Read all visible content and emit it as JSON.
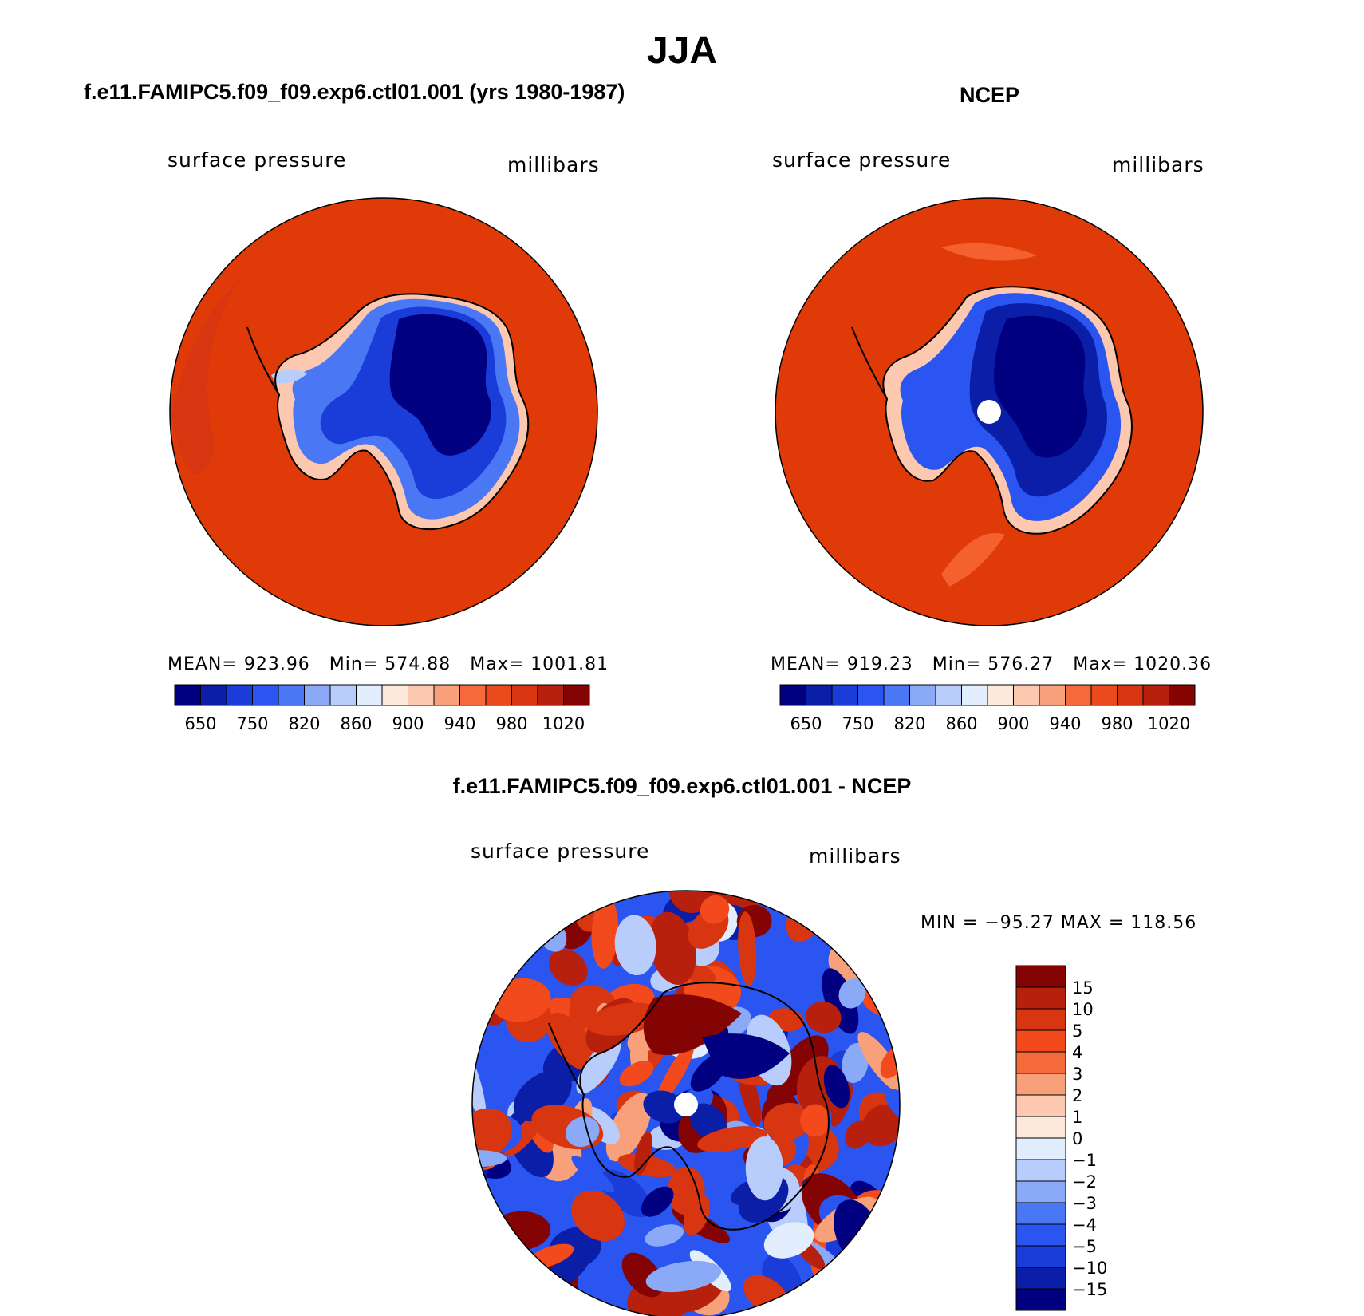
{
  "title": "JJA",
  "panels": [
    {
      "title": "f.e11.FAMIPC5.f09_f09.exp6.ctl01.001 (yrs 1980-1987)",
      "field_label": "surface pressure",
      "units_label": "millibars",
      "stats": {
        "mean_label": "MEAN=",
        "mean": "923.96",
        "min_label": "Min=",
        "min": "574.88",
        "max_label": "Max=",
        "max": "1001.81"
      },
      "pole_hole": false
    },
    {
      "title": "NCEP",
      "field_label": "surface pressure",
      "units_label": "millibars",
      "stats": {
        "mean_label": "MEAN=",
        "mean": "919.23",
        "min_label": "Min=",
        "min": "576.27",
        "max_label": "Max=",
        "max": "1020.36"
      },
      "pole_hole": true
    },
    {
      "title": "f.e11.FAMIPC5.f09_f09.exp6.ctl01.001 - NCEP",
      "field_label": "surface pressure",
      "units_label": "millibars",
      "minmax_text": "MIN = −95.27 MAX = 118.56",
      "pole_hole": true
    }
  ],
  "chart_data": [
    {
      "type": "heatmap",
      "projection": "south polar stereographic",
      "field": "surface pressure",
      "units": "millibars",
      "colorbar": {
        "orientation": "horizontal",
        "levels": [
          650,
          700,
          750,
          800,
          820,
          840,
          860,
          880,
          900,
          920,
          940,
          960,
          980,
          1000,
          1020
        ],
        "tick_labels": [
          "650",
          "750",
          "820",
          "860",
          "900",
          "940",
          "980",
          "1020"
        ],
        "colors": [
          "#000080",
          "#0a1ea8",
          "#1a3cd8",
          "#2a55f0",
          "#4a78f5",
          "#8aaaf8",
          "#b8cdfb",
          "#e2eefd",
          "#fde9dc",
          "#fcc8b0",
          "#f8a07a",
          "#f46a3a",
          "#ea4a1c",
          "#d83610",
          "#b8200e",
          "#840404"
        ]
      }
    },
    {
      "type": "heatmap",
      "projection": "south polar stereographic",
      "field": "surface pressure",
      "units": "millibars",
      "colorbar": {
        "orientation": "horizontal",
        "levels": [
          650,
          700,
          750,
          800,
          820,
          840,
          860,
          880,
          900,
          920,
          940,
          960,
          980,
          1000,
          1020
        ],
        "tick_labels": [
          "650",
          "750",
          "820",
          "860",
          "900",
          "940",
          "980",
          "1020"
        ],
        "colors": [
          "#000080",
          "#0a1ea8",
          "#1a3cd8",
          "#2a55f0",
          "#4a78f5",
          "#8aaaf8",
          "#b8cdfb",
          "#e2eefd",
          "#fde9dc",
          "#fcc8b0",
          "#f8a07a",
          "#f46a3a",
          "#ea4a1c",
          "#d83610",
          "#b8200e",
          "#840404"
        ]
      }
    },
    {
      "type": "heatmap",
      "projection": "south polar stereographic",
      "field": "surface pressure difference",
      "units": "millibars",
      "colorbar": {
        "orientation": "vertical",
        "tick_labels": [
          "15",
          "10",
          "5",
          "4",
          "3",
          "2",
          "1",
          "0",
          "−1",
          "−2",
          "−3",
          "−4",
          "−5",
          "−10",
          "−15"
        ],
        "colors": [
          "#840404",
          "#b8200e",
          "#d83610",
          "#f24a1c",
          "#f46a3a",
          "#f8a07a",
          "#fcc8b0",
          "#fde9dc",
          "#e2eefd",
          "#b8cdfb",
          "#8aaaf8",
          "#4a78f5",
          "#2a55f0",
          "#1a3cd8",
          "#0a1ea8",
          "#000080"
        ]
      }
    }
  ]
}
